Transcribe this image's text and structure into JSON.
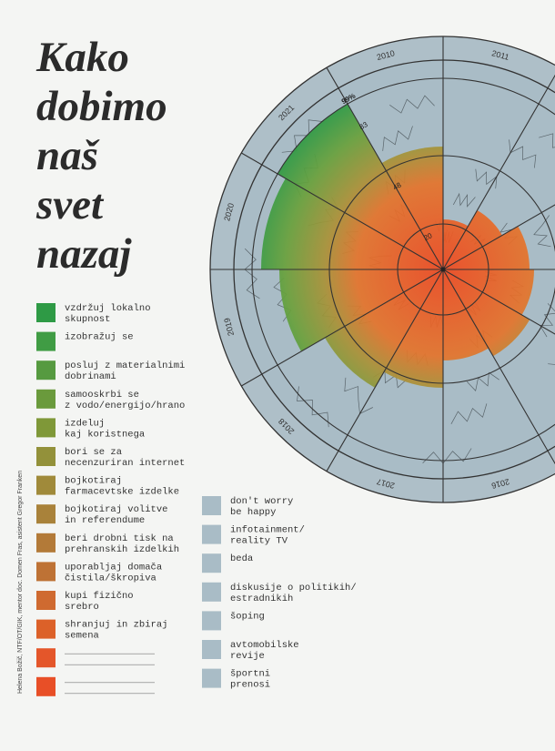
{
  "title_lines": [
    "Kako",
    "dobimo",
    "naš",
    "svet",
    "nazaj"
  ],
  "credit": "Helena Božič, NTF/OT/GIK, mentor doc. Domen Fras, asistent Gregor Franken",
  "years": [
    "2010",
    "2011",
    "2016",
    "2017",
    "2018",
    "2019",
    "2020",
    "2021"
  ],
  "ring_labels": [
    "99%",
    "83",
    "48",
    "20"
  ],
  "left_items": [
    {
      "label": "vzdržuj lokalno\nskupnost",
      "color": "#2e9a45"
    },
    {
      "label": "izobražuj se",
      "color": "#409c44"
    },
    {
      "label": "posluj z materialnimi\ndobrinami",
      "color": "#569a40"
    },
    {
      "label": "samooskrbi se\nz vodo/energijo/hrano",
      "color": "#6a9a3c"
    },
    {
      "label": "izdeluj\nkaj koristnega",
      "color": "#7f9838"
    },
    {
      "label": "bori se za\nnecenzuriran internet",
      "color": "#93913a"
    },
    {
      "label": "bojkotiraj\nfarmacevtske izdelke",
      "color": "#a08a3a"
    },
    {
      "label": "bojkotiraj volitve\nin referendume",
      "color": "#a9823a"
    },
    {
      "label": "beri drobni tisk na\nprehranskih izdelkih",
      "color": "#b37a38"
    },
    {
      "label": "uporabljaj domača\nčistila/škropiva",
      "color": "#be7235"
    },
    {
      "label": "kupi fizično\nsrebro",
      "color": "#cf6a30"
    },
    {
      "label": "shranjuj in zbiraj\nsemena",
      "color": "#dc6129"
    },
    {
      "color": "#e4562a"
    },
    {
      "color": "#e84f27"
    }
  ],
  "right_items": [
    {
      "label": "don't worry\nbe happy",
      "color": "#a9bcc6"
    },
    {
      "label": "infotainment/\nreality TV",
      "color": "#a9bcc6"
    },
    {
      "label": "beda",
      "color": "#a9bcc6"
    },
    {
      "label": "diskusije o politikih/\nestradnikih",
      "color": "#a9bcc6"
    },
    {
      "label": "šoping",
      "color": "#a9bcc6"
    },
    {
      "label": "avtomobilske\nrevije",
      "color": "#a9bcc6"
    },
    {
      "label": "športni\nprenosi",
      "color": "#a9bcc6"
    }
  ]
}
